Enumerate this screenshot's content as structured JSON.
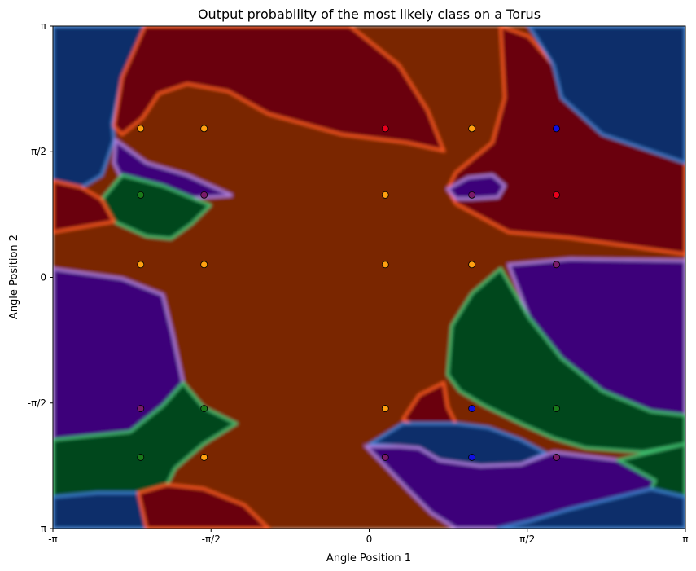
{
  "chart_data": {
    "type": "heatmap",
    "title": "Output probability of the most likely class on a Torus",
    "xlabel": "Angle Position 1",
    "ylabel": "Angle Position 2",
    "xlim": [
      -3.14159,
      3.14159
    ],
    "ylim": [
      -3.14159,
      3.14159
    ],
    "x_ticks": [
      {
        "value": -3.14159,
        "label": "-π"
      },
      {
        "value": -1.5708,
        "label": "-π/2"
      },
      {
        "value": 0,
        "label": "0"
      },
      {
        "value": 1.5708,
        "label": "π/2"
      },
      {
        "value": 3.14159,
        "label": "π"
      }
    ],
    "y_ticks": [
      {
        "value": -3.14159,
        "label": "-π"
      },
      {
        "value": -1.5708,
        "label": "-π/2"
      },
      {
        "value": 0,
        "label": "0"
      },
      {
        "value": 1.5708,
        "label": "π/2"
      },
      {
        "value": 3.14159,
        "label": "π"
      }
    ],
    "grid": false,
    "class_colors": {
      "orange": "#7a2700",
      "red": "#6b000f",
      "blue": "#0b2f6a",
      "purple": "#3d007a",
      "green": "#00461b"
    },
    "point_colors": {
      "orange": "#ffa010",
      "red": "#e8001c",
      "blue": "#1010e0",
      "purple": "#7a1a6a",
      "green": "#1a7a1a"
    },
    "points": [
      {
        "x": -2.27,
        "y": 1.86,
        "class": "orange"
      },
      {
        "x": -1.64,
        "y": 1.86,
        "class": "orange"
      },
      {
        "x": 0.16,
        "y": 1.86,
        "class": "red"
      },
      {
        "x": 1.02,
        "y": 1.86,
        "class": "orange"
      },
      {
        "x": 1.86,
        "y": 1.86,
        "class": "blue"
      },
      {
        "x": -2.27,
        "y": 1.03,
        "class": "green"
      },
      {
        "x": -1.64,
        "y": 1.03,
        "class": "purple"
      },
      {
        "x": 0.16,
        "y": 1.03,
        "class": "orange"
      },
      {
        "x": 1.02,
        "y": 1.03,
        "class": "purple"
      },
      {
        "x": 1.86,
        "y": 1.03,
        "class": "red"
      },
      {
        "x": -2.27,
        "y": 0.16,
        "class": "orange"
      },
      {
        "x": -1.64,
        "y": 0.16,
        "class": "orange"
      },
      {
        "x": 0.16,
        "y": 0.16,
        "class": "orange"
      },
      {
        "x": 1.02,
        "y": 0.16,
        "class": "orange"
      },
      {
        "x": 1.86,
        "y": 0.16,
        "class": "purple"
      },
      {
        "x": -2.27,
        "y": -1.64,
        "class": "purple"
      },
      {
        "x": -1.64,
        "y": -1.64,
        "class": "green"
      },
      {
        "x": 0.16,
        "y": -1.64,
        "class": "orange"
      },
      {
        "x": 1.02,
        "y": -1.64,
        "class": "blue"
      },
      {
        "x": 1.86,
        "y": -1.64,
        "class": "green"
      },
      {
        "x": -2.27,
        "y": -2.25,
        "class": "green"
      },
      {
        "x": -1.64,
        "y": -2.25,
        "class": "orange"
      },
      {
        "x": 0.16,
        "y": -2.25,
        "class": "purple"
      },
      {
        "x": 1.02,
        "y": -2.25,
        "class": "blue"
      },
      {
        "x": 1.86,
        "y": -2.25,
        "class": "purple"
      }
    ]
  }
}
